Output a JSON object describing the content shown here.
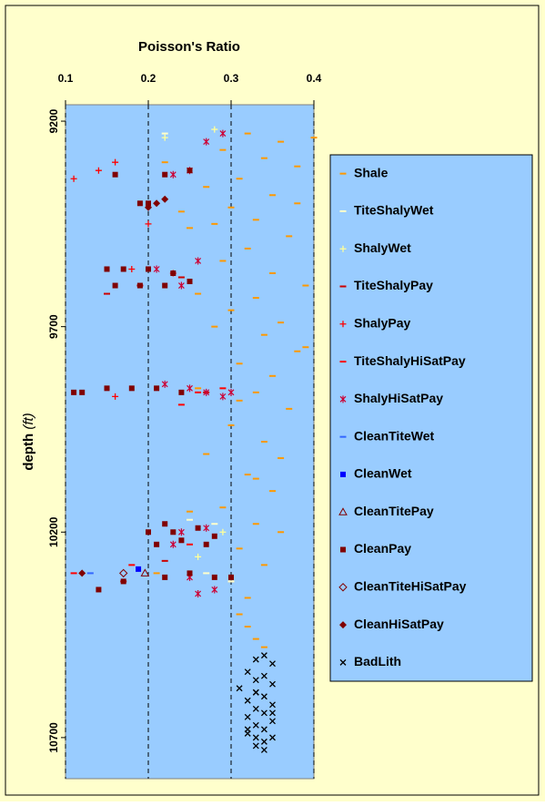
{
  "chart_data": {
    "type": "scatter",
    "x_label": "Poisson's Ratio",
    "y_label": "depth",
    "y_unit": "(ft)",
    "xlim": [
      0.1,
      0.4
    ],
    "xticks": [
      0.1,
      0.2,
      0.3,
      0.4
    ],
    "ylim": [
      9160,
      10800
    ],
    "yticks": [
      9200,
      9700,
      10200,
      10700
    ],
    "y_inverted": true,
    "grid": true,
    "legend": "right",
    "series": [
      {
        "name": "Shale",
        "color": "#ff9900",
        "marker": "dash",
        "x": [
          0.32,
          0.36,
          0.29,
          0.34,
          0.38,
          0.31,
          0.27,
          0.35,
          0.3,
          0.33,
          0.25,
          0.37,
          0.32,
          0.29,
          0.35,
          0.39,
          0.33,
          0.3,
          0.36,
          0.34,
          0.38,
          0.31,
          0.35,
          0.33,
          0.37,
          0.3,
          0.34,
          0.36,
          0.32,
          0.35,
          0.29,
          0.33,
          0.31,
          0.34,
          0.3,
          0.32,
          0.31,
          0.32,
          0.33,
          0.34,
          0.22,
          0.24,
          0.26,
          0.28,
          0.26,
          0.27,
          0.25,
          0.21,
          0.38,
          0.4,
          0.39,
          0.28,
          0.31,
          0.36,
          0.33
        ],
        "y": [
          9230,
          9250,
          9270,
          9290,
          9310,
          9340,
          9360,
          9380,
          9410,
          9440,
          9460,
          9480,
          9510,
          9540,
          9570,
          9600,
          9630,
          9660,
          9690,
          9720,
          9760,
          9790,
          9820,
          9860,
          9900,
          9940,
          9980,
          10020,
          10060,
          10100,
          10140,
          10180,
          10240,
          10280,
          10320,
          10360,
          10400,
          10430,
          10460,
          10480,
          9300,
          9420,
          9620,
          9700,
          9850,
          10010,
          10150,
          10300,
          9400,
          9240,
          9750,
          9450,
          9880,
          10200,
          10070
        ]
      },
      {
        "name": "TiteShalyWet",
        "color": "#ffffcc",
        "marker": "dash",
        "x": [
          0.22,
          0.25,
          0.28,
          0.3,
          0.27
        ],
        "y": [
          9230,
          10170,
          10180,
          10320,
          10300
        ]
      },
      {
        "name": "ShalyWet",
        "color": "#ffff99",
        "marker": "plus",
        "x": [
          0.22,
          0.28,
          0.29,
          0.26
        ],
        "y": [
          9240,
          9220,
          10200,
          10260
        ]
      },
      {
        "name": "TiteShalyPay",
        "color": "#cc0000",
        "marker": "dash",
        "x": [
          0.15,
          0.19,
          0.24,
          0.27,
          0.17,
          0.22
        ],
        "y": [
          9620,
          9600,
          9580,
          9860,
          10320,
          10270
        ]
      },
      {
        "name": "ShalyPay",
        "color": "#ff0000",
        "marker": "plus",
        "x": [
          0.14,
          0.16,
          0.11,
          0.2,
          0.18,
          0.23,
          0.16
        ],
        "y": [
          9320,
          9300,
          9340,
          9450,
          9560,
          9570,
          9870
        ]
      },
      {
        "name": "TiteShalyHiSatPay",
        "color": "#ff0000",
        "marker": "dash",
        "x": [
          0.26,
          0.29,
          0.24,
          0.11,
          0.18,
          0.25
        ],
        "y": [
          9860,
          9850,
          9890,
          10300,
          10280,
          10230
        ]
      },
      {
        "name": "ShalyHiSatPay",
        "color": "#cc0033",
        "marker": "star",
        "x": [
          0.27,
          0.29,
          0.25,
          0.23,
          0.26,
          0.21,
          0.24,
          0.22,
          0.27,
          0.29,
          0.25,
          0.3,
          0.24,
          0.27,
          0.23,
          0.26,
          0.28,
          0.25
        ],
        "y": [
          9250,
          9230,
          9320,
          9330,
          9540,
          9560,
          9600,
          9840,
          9860,
          9870,
          9850,
          9860,
          10200,
          10190,
          10230,
          10350,
          10340,
          10310
        ]
      },
      {
        "name": "CleanTiteWet",
        "color": "#3366ff",
        "marker": "dash",
        "x": [
          0.13
        ],
        "y": [
          10300
        ]
      },
      {
        "name": "CleanWet",
        "color": "#0000ff",
        "marker": "square",
        "x": [
          0.188
        ],
        "y": [
          10290
        ]
      },
      {
        "name": "CleanTitePay",
        "color": "#800000",
        "marker": "triangle",
        "x": [
          0.196
        ],
        "y": [
          10300
        ]
      },
      {
        "name": "CleanPay",
        "color": "#800000",
        "marker": "square",
        "x": [
          0.16,
          0.22,
          0.25,
          0.19,
          0.2,
          0.15,
          0.17,
          0.2,
          0.23,
          0.25,
          0.16,
          0.19,
          0.22,
          0.12,
          0.11,
          0.15,
          0.18,
          0.21,
          0.24,
          0.22,
          0.2,
          0.23,
          0.26,
          0.28,
          0.21,
          0.24,
          0.27,
          0.22,
          0.25,
          0.28,
          0.3,
          0.17,
          0.14
        ],
        "y": [
          9330,
          9330,
          9320,
          9400,
          9400,
          9560,
          9560,
          9560,
          9570,
          9590,
          9600,
          9600,
          9600,
          9860,
          9860,
          9850,
          9850,
          9850,
          9860,
          10180,
          10200,
          10200,
          10190,
          10210,
          10230,
          10220,
          10230,
          10310,
          10300,
          10310,
          10310,
          10320,
          10340
        ]
      },
      {
        "name": "CleanTiteHiSatPay",
        "color": "#800000",
        "marker": "diamond-open",
        "x": [
          0.17
        ],
        "y": [
          10300
        ]
      },
      {
        "name": "CleanHiSatPay",
        "color": "#800000",
        "marker": "diamond",
        "x": [
          0.21,
          0.22,
          0.2,
          0.12
        ],
        "y": [
          9400,
          9390,
          9410,
          10300
        ]
      },
      {
        "name": "BadLith",
        "color": "#000000",
        "marker": "x",
        "x": [
          0.34,
          0.33,
          0.35,
          0.32,
          0.34,
          0.33,
          0.35,
          0.31,
          0.33,
          0.34,
          0.32,
          0.35,
          0.33,
          0.34,
          0.32,
          0.35,
          0.33,
          0.34,
          0.32,
          0.33,
          0.35,
          0.34,
          0.33,
          0.32,
          0.35,
          0.33,
          0.34
        ],
        "y": [
          10500,
          10510,
          10520,
          10540,
          10550,
          10560,
          10570,
          10580,
          10590,
          10600,
          10610,
          10620,
          10630,
          10640,
          10650,
          10660,
          10670,
          10680,
          10690,
          10700,
          10700,
          10710,
          10720,
          10680,
          10640,
          10590,
          10730
        ]
      }
    ]
  }
}
